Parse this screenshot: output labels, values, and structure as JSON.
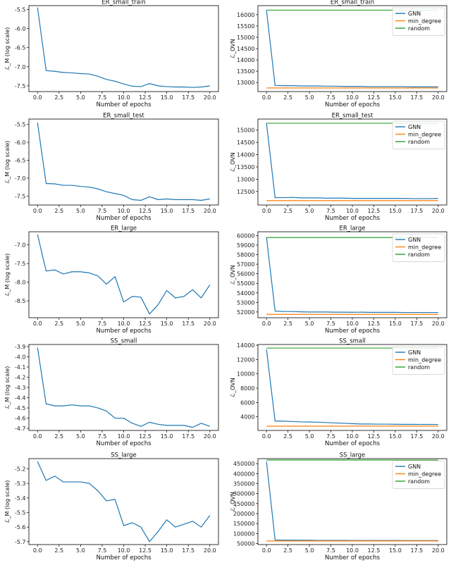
{
  "chart_data": [
    {
      "type": "line",
      "panel": "left",
      "title": "ER_small_train",
      "xlabel": "Number of epochs",
      "ylabel": "ℒ_M (log scale)",
      "xlim": [
        -1,
        21
      ],
      "ylim": [
        -7.65,
        -5.4
      ],
      "xticks": [
        0,
        2.5,
        5,
        7.5,
        10,
        12.5,
        15,
        17.5,
        20
      ],
      "xtick_labels": [
        "0.0",
        "2.5",
        "5.0",
        "7.5",
        "10.0",
        "12.5",
        "15.0",
        "17.5",
        "20.0"
      ],
      "yticks": [
        -5.5,
        -6.0,
        -6.5,
        -7.0,
        -7.5
      ],
      "ytick_labels": [
        "-5.5",
        "-6.0",
        "-6.5",
        "-7.0",
        "-7.5"
      ],
      "series": [
        {
          "color": "#1f77b4",
          "x": [
            0,
            1,
            2,
            3,
            4,
            5,
            6,
            7,
            8,
            9,
            10,
            11,
            12,
            13,
            14,
            15,
            16,
            17,
            18,
            19,
            20
          ],
          "y": [
            -5.45,
            -7.1,
            -7.12,
            -7.15,
            -7.16,
            -7.18,
            -7.19,
            -7.25,
            -7.33,
            -7.38,
            -7.45,
            -7.51,
            -7.52,
            -7.44,
            -7.5,
            -7.52,
            -7.53,
            -7.53,
            -7.54,
            -7.53,
            -7.5
          ]
        }
      ]
    },
    {
      "type": "line",
      "panel": "right",
      "title": "ER_small_train",
      "xlabel": "Number of epochs",
      "ylabel": "ℒ_OVN",
      "xlim": [
        -1,
        21
      ],
      "ylim": [
        12600,
        16400
      ],
      "xticks": [
        0,
        2.5,
        5,
        7.5,
        10,
        12.5,
        15,
        17.5,
        20
      ],
      "xtick_labels": [
        "0.0",
        "2.5",
        "5.0",
        "7.5",
        "10.0",
        "12.5",
        "15.0",
        "17.5",
        "20.0"
      ],
      "yticks": [
        13000,
        13500,
        14000,
        14500,
        15000,
        15500,
        16000
      ],
      "ytick_labels": [
        "13000",
        "13500",
        "14000",
        "14500",
        "15000",
        "15500",
        "16000"
      ],
      "legend": "top-right",
      "series": [
        {
          "name": "GNN",
          "color": "#1f77b4",
          "x": [
            0,
            1,
            2,
            3,
            4,
            5,
            6,
            7,
            8,
            9,
            10,
            11,
            12,
            13,
            14,
            15,
            16,
            17,
            18,
            19,
            20
          ],
          "y": [
            16200,
            12870,
            12860,
            12860,
            12850,
            12850,
            12850,
            12840,
            12840,
            12830,
            12830,
            12830,
            12820,
            12820,
            12820,
            12820,
            12820,
            12810,
            12810,
            12810,
            12810
          ]
        },
        {
          "name": "min_degree",
          "color": "#ff7f0e",
          "x": [
            0,
            20
          ],
          "y": [
            12760,
            12760
          ]
        },
        {
          "name": "random",
          "color": "#2ca02c",
          "x": [
            0,
            20
          ],
          "y": [
            16200,
            16200
          ]
        }
      ]
    },
    {
      "type": "line",
      "panel": "left",
      "title": "ER_small_test",
      "xlabel": "Number of epochs",
      "ylabel": "ℒ_M (log scale)",
      "xlim": [
        -1,
        21
      ],
      "ylim": [
        -7.75,
        -5.35
      ],
      "xticks": [
        0,
        2.5,
        5,
        7.5,
        10,
        12.5,
        15,
        17.5,
        20
      ],
      "xtick_labels": [
        "0.0",
        "2.5",
        "5.0",
        "7.5",
        "10.0",
        "12.5",
        "15.0",
        "17.5",
        "20.0"
      ],
      "yticks": [
        -5.5,
        -6.0,
        -6.5,
        -7.0,
        -7.5
      ],
      "ytick_labels": [
        "-5.5",
        "-6.0",
        "-6.5",
        "-7.0",
        "-7.5"
      ],
      "series": [
        {
          "color": "#1f77b4",
          "x": [
            0,
            1,
            2,
            3,
            4,
            5,
            6,
            7,
            8,
            9,
            10,
            11,
            12,
            13,
            14,
            15,
            16,
            17,
            18,
            19,
            20
          ],
          "y": [
            -5.45,
            -7.15,
            -7.16,
            -7.2,
            -7.2,
            -7.23,
            -7.25,
            -7.3,
            -7.38,
            -7.43,
            -7.48,
            -7.6,
            -7.62,
            -7.52,
            -7.6,
            -7.58,
            -7.6,
            -7.6,
            -7.6,
            -7.62,
            -7.58
          ]
        }
      ]
    },
    {
      "type": "line",
      "panel": "right",
      "title": "ER_small_test",
      "xlabel": "Number of epochs",
      "ylabel": "ℒ_OVN",
      "xlim": [
        -1,
        21
      ],
      "ylim": [
        11950,
        15450
      ],
      "xticks": [
        0,
        2.5,
        5,
        7.5,
        10,
        12.5,
        15,
        17.5,
        20
      ],
      "xtick_labels": [
        "0.0",
        "2.5",
        "5.0",
        "7.5",
        "10.0",
        "12.5",
        "15.0",
        "17.5",
        "20.0"
      ],
      "yticks": [
        12500,
        13000,
        13500,
        14000,
        14500,
        15000
      ],
      "ytick_labels": [
        "12500",
        "13000",
        "13500",
        "14000",
        "14500",
        "15000"
      ],
      "legend": "top-right",
      "series": [
        {
          "name": "GNN",
          "color": "#1f77b4",
          "x": [
            0,
            1,
            2,
            3,
            4,
            5,
            6,
            7,
            8,
            9,
            10,
            11,
            12,
            13,
            14,
            15,
            16,
            17,
            18,
            19,
            20
          ],
          "y": [
            15280,
            12250,
            12250,
            12260,
            12240,
            12240,
            12240,
            12230,
            12230,
            12230,
            12220,
            12220,
            12220,
            12220,
            12220,
            12220,
            12220,
            12210,
            12210,
            12210,
            12220
          ]
        },
        {
          "name": "min_degree",
          "color": "#ff7f0e",
          "x": [
            0,
            20
          ],
          "y": [
            12130,
            12130
          ]
        },
        {
          "name": "random",
          "color": "#2ca02c",
          "x": [
            0,
            20
          ],
          "y": [
            15280,
            15280
          ]
        }
      ]
    },
    {
      "type": "line",
      "panel": "left",
      "title": "ER_large",
      "xlabel": "Number of epochs",
      "ylabel": "ℒ_M (log scale)",
      "xlim": [
        -1,
        21
      ],
      "ylim": [
        -8.95,
        -6.65
      ],
      "xticks": [
        0,
        2.5,
        5,
        7.5,
        10,
        12.5,
        15,
        17.5,
        20
      ],
      "xtick_labels": [
        "0.0",
        "2.5",
        "5.0",
        "7.5",
        "10.0",
        "12.5",
        "15.0",
        "17.5",
        "20.0"
      ],
      "yticks": [
        -7.0,
        -7.5,
        -8.0,
        -8.5
      ],
      "ytick_labels": [
        "-7.0",
        "-7.5",
        "-8.0",
        "-8.5"
      ],
      "series": [
        {
          "color": "#1f77b4",
          "x": [
            0,
            1,
            2,
            3,
            4,
            5,
            6,
            7,
            8,
            9,
            10,
            11,
            12,
            13,
            14,
            15,
            16,
            17,
            18,
            19,
            20
          ],
          "y": [
            -6.72,
            -7.7,
            -7.67,
            -7.78,
            -7.72,
            -7.72,
            -7.75,
            -7.83,
            -8.05,
            -7.85,
            -8.53,
            -8.38,
            -8.4,
            -8.85,
            -8.6,
            -8.22,
            -8.42,
            -8.38,
            -8.2,
            -8.42,
            -8.07
          ]
        }
      ]
    },
    {
      "type": "line",
      "panel": "right",
      "title": "ER_large",
      "xlabel": "Number of epochs",
      "ylabel": "ℒ_OVN",
      "xlim": [
        -1,
        21
      ],
      "ylim": [
        51400,
        60400
      ],
      "xticks": [
        0,
        2.5,
        5,
        7.5,
        10,
        12.5,
        15,
        17.5,
        20
      ],
      "xtick_labels": [
        "0.0",
        "2.5",
        "5.0",
        "7.5",
        "10.0",
        "12.5",
        "15.0",
        "17.5",
        "20.0"
      ],
      "yticks": [
        52000,
        53000,
        54000,
        55000,
        56000,
        57000,
        58000,
        59000,
        60000
      ],
      "ytick_labels": [
        "52000",
        "53000",
        "54000",
        "55000",
        "56000",
        "57000",
        "58000",
        "59000",
        "60000"
      ],
      "legend": "top-right",
      "series": [
        {
          "name": "GNN",
          "color": "#1f77b4",
          "x": [
            0,
            1,
            2,
            3,
            4,
            5,
            6,
            7,
            8,
            9,
            10,
            11,
            12,
            13,
            14,
            15,
            16,
            17,
            18,
            19,
            20
          ],
          "y": [
            59800,
            52100,
            52050,
            52050,
            52020,
            52000,
            52000,
            52000,
            51980,
            51980,
            51970,
            51980,
            51960,
            51960,
            51960,
            51960,
            51950,
            51950,
            51950,
            51950,
            51950
          ]
        },
        {
          "name": "min_degree",
          "color": "#ff7f0e",
          "x": [
            0,
            20
          ],
          "y": [
            51750,
            51750
          ]
        },
        {
          "name": "random",
          "color": "#2ca02c",
          "x": [
            0,
            20
          ],
          "y": [
            59800,
            59800
          ]
        }
      ]
    },
    {
      "type": "line",
      "panel": "left",
      "title": "SS_small",
      "xlabel": "Number of epochs",
      "ylabel": "ℒ_M (log scale)",
      "xlim": [
        -1,
        21
      ],
      "ylim": [
        -4.72,
        -3.88
      ],
      "xticks": [
        0,
        2.5,
        5,
        7.5,
        10,
        12.5,
        15,
        17.5,
        20
      ],
      "xtick_labels": [
        "0.0",
        "2.5",
        "5.0",
        "7.5",
        "10.0",
        "12.5",
        "15.0",
        "17.5",
        "20.0"
      ],
      "yticks": [
        -3.9,
        -4.0,
        -4.1,
        -4.2,
        -4.3,
        -4.4,
        -4.5,
        -4.6,
        -4.7
      ],
      "ytick_labels": [
        "-3.9",
        "-4.0",
        "-4.1",
        "-4.2",
        "-4.3",
        "-4.4",
        "-4.5",
        "-4.6",
        "-4.7"
      ],
      "series": [
        {
          "color": "#1f77b4",
          "x": [
            0,
            1,
            2,
            3,
            4,
            5,
            6,
            7,
            8,
            9,
            10,
            11,
            12,
            13,
            14,
            15,
            16,
            17,
            18,
            19,
            20
          ],
          "y": [
            -3.91,
            -4.46,
            -4.48,
            -4.48,
            -4.47,
            -4.48,
            -4.48,
            -4.5,
            -4.53,
            -4.6,
            -4.6,
            -4.65,
            -4.68,
            -4.64,
            -4.66,
            -4.67,
            -4.67,
            -4.67,
            -4.69,
            -4.65,
            -4.68
          ]
        }
      ]
    },
    {
      "type": "line",
      "panel": "right",
      "title": "SS_small",
      "xlabel": "Number of epochs",
      "ylabel": "ℒ_OVN",
      "xlim": [
        -1,
        21
      ],
      "ylim": [
        2100,
        14100
      ],
      "xticks": [
        0,
        2.5,
        5,
        7.5,
        10,
        12.5,
        15,
        17.5,
        20
      ],
      "xtick_labels": [
        "0.0",
        "2.5",
        "5.0",
        "7.5",
        "10.0",
        "12.5",
        "15.0",
        "17.5",
        "20.0"
      ],
      "yticks": [
        4000,
        6000,
        8000,
        10000,
        12000,
        14000
      ],
      "ytick_labels": [
        "4000",
        "6000",
        "8000",
        "10000",
        "12000",
        "14000"
      ],
      "legend": "top-right",
      "series": [
        {
          "name": "GNN",
          "color": "#1f77b4",
          "x": [
            0,
            1,
            2,
            3,
            4,
            5,
            6,
            7,
            8,
            9,
            10,
            11,
            12,
            13,
            14,
            15,
            16,
            17,
            18,
            19,
            20
          ],
          "y": [
            13400,
            3400,
            3400,
            3350,
            3300,
            3280,
            3250,
            3200,
            3150,
            3100,
            3050,
            3000,
            3000,
            2980,
            2980,
            2960,
            2950,
            2950,
            2940,
            2940,
            2930
          ]
        },
        {
          "name": "min_degree",
          "color": "#ff7f0e",
          "x": [
            0,
            20
          ],
          "y": [
            2700,
            2700
          ]
        },
        {
          "name": "random",
          "color": "#2ca02c",
          "x": [
            0,
            20
          ],
          "y": [
            13600,
            13600
          ]
        }
      ]
    },
    {
      "type": "line",
      "panel": "left",
      "title": "SS_large",
      "xlabel": "Number of epochs",
      "ylabel": "ℒ_M (log scale)",
      "xlim": [
        -1,
        21
      ],
      "ylim": [
        -5.72,
        -5.13
      ],
      "xticks": [
        0,
        2.5,
        5,
        7.5,
        10,
        12.5,
        15,
        17.5,
        20
      ],
      "xtick_labels": [
        "0.0",
        "2.5",
        "5.0",
        "7.5",
        "10.0",
        "12.5",
        "15.0",
        "17.5",
        "20.0"
      ],
      "yticks": [
        -5.2,
        -5.3,
        -5.4,
        -5.5,
        -5.6,
        -5.7
      ],
      "ytick_labels": [
        "-5.2",
        "-5.3",
        "-5.4",
        "-5.5",
        "-5.6",
        "-5.7"
      ],
      "series": [
        {
          "color": "#1f77b4",
          "x": [
            0,
            1,
            2,
            3,
            4,
            5,
            6,
            7,
            8,
            9,
            10,
            11,
            12,
            13,
            14,
            15,
            16,
            17,
            18,
            19,
            20
          ],
          "y": [
            -5.15,
            -5.28,
            -5.25,
            -5.29,
            -5.29,
            -5.29,
            -5.3,
            -5.35,
            -5.42,
            -5.41,
            -5.59,
            -5.57,
            -5.6,
            -5.7,
            -5.63,
            -5.55,
            -5.6,
            -5.58,
            -5.56,
            -5.6,
            -5.52
          ]
        }
      ]
    },
    {
      "type": "line",
      "panel": "right",
      "title": "SS_large",
      "xlabel": "Number of epochs",
      "ylabel": "ℒ_OVN",
      "xlim": [
        -1,
        21
      ],
      "ylim": [
        45000,
        475000
      ],
      "xticks": [
        0,
        2.5,
        5,
        7.5,
        10,
        12.5,
        15,
        17.5,
        20
      ],
      "xtick_labels": [
        "0.0",
        "2.5",
        "5.0",
        "7.5",
        "10.0",
        "12.5",
        "15.0",
        "17.5",
        "20.0"
      ],
      "yticks": [
        50000,
        100000,
        150000,
        200000,
        250000,
        300000,
        350000,
        400000,
        450000
      ],
      "ytick_labels": [
        "50000",
        "100000",
        "150000",
        "200000",
        "250000",
        "300000",
        "350000",
        "400000",
        "450000"
      ],
      "legend": "top-right",
      "series": [
        {
          "name": "GNN",
          "color": "#1f77b4",
          "x": [
            0,
            1,
            2,
            3,
            4,
            5,
            6,
            7,
            8,
            9,
            10,
            11,
            12,
            13,
            14,
            15,
            16,
            17,
            18,
            19,
            20
          ],
          "y": [
            460000,
            68000,
            67000,
            67000,
            66500,
            66500,
            66000,
            66000,
            66000,
            66000,
            65500,
            65500,
            65500,
            65500,
            65500,
            65500,
            65000,
            65000,
            65000,
            65000,
            65000
          ]
        },
        {
          "name": "min_degree",
          "color": "#ff7f0e",
          "x": [
            0,
            20
          ],
          "y": [
            63000,
            63000
          ]
        },
        {
          "name": "random",
          "color": "#2ca02c",
          "x": [
            0,
            20
          ],
          "y": [
            468000,
            468000
          ]
        }
      ]
    }
  ]
}
